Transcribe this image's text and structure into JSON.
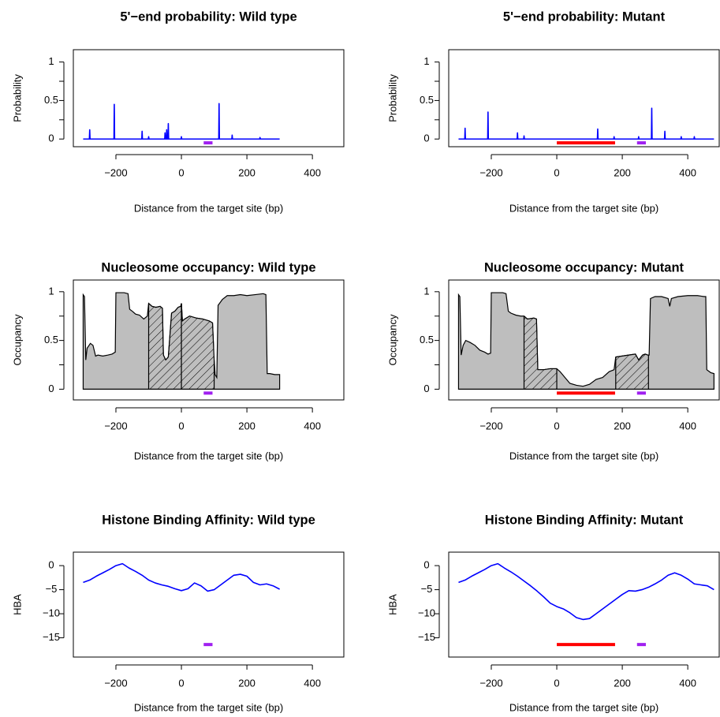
{
  "chart_data": [
    {
      "type": "line",
      "title": "5'−end probability: Wild type",
      "xlabel": "Distance from the target site (bp)",
      "ylabel": "Probability",
      "color": "#0000ff",
      "x": [
        -300,
        -281,
        -280,
        -279,
        -206,
        -205,
        -204,
        -121,
        -120,
        -119,
        -101,
        -100,
        -99,
        -51,
        -50,
        -49,
        -46,
        -45,
        -44,
        -41,
        -40,
        -39,
        -1,
        0,
        1,
        114,
        115,
        116,
        154,
        155,
        156,
        239,
        240,
        241,
        300
      ],
      "values": [
        0,
        0,
        0.12,
        0,
        0,
        0.45,
        0,
        0,
        0.1,
        0,
        0,
        0.03,
        0,
        0,
        0.08,
        0,
        0,
        0.12,
        0,
        0,
        0.2,
        0,
        0,
        0.03,
        0,
        0,
        0.46,
        0,
        0,
        0.05,
        0,
        0,
        0.02,
        0,
        0
      ],
      "xlim": [
        -330,
        496
      ],
      "ylim": [
        -0.1,
        1.16
      ],
      "xticks": [
        {
          "value": -200,
          "label": "−200"
        },
        0,
        200,
        400
      ],
      "yticks": [
        0,
        0.5,
        1
      ],
      "yminor_ticks": [
        0.25,
        0.75
      ],
      "regions": [
        {
          "color": "#a020f0",
          "x": [
            68,
            95
          ],
          "y": -0.05
        }
      ]
    },
    {
      "type": "line",
      "title": "5'−end probability: Mutant",
      "xlabel": "Distance from the target site (bp)",
      "ylabel": "Probability",
      "color": "#0000ff",
      "x": [
        -300,
        -281,
        -280,
        -279,
        -211,
        -210,
        -209,
        -121,
        -120,
        -119,
        -101,
        -100,
        -99,
        124,
        125,
        126,
        174,
        175,
        176,
        249,
        250,
        251,
        289,
        290,
        291,
        329,
        330,
        331,
        379,
        380,
        381,
        419,
        420,
        421,
        480
      ],
      "values": [
        0,
        0,
        0.14,
        0,
        0,
        0.35,
        0,
        0,
        0.08,
        0,
        0,
        0.04,
        0,
        0,
        0.13,
        0,
        0,
        0.03,
        0,
        0,
        0.03,
        0,
        0,
        0.4,
        0,
        0,
        0.1,
        0,
        0,
        0.03,
        0,
        0,
        0.03,
        0,
        0
      ],
      "xlim": [
        -330,
        496
      ],
      "ylim": [
        -0.1,
        1.16
      ],
      "xticks": [
        {
          "value": -200,
          "label": "−200"
        },
        0,
        200,
        400
      ],
      "yticks": [
        0,
        0.5,
        1
      ],
      "yminor_ticks": [
        0.25,
        0.75
      ],
      "regions": [
        {
          "color": "#ff0000",
          "x": [
            0,
            178
          ],
          "y": -0.05
        },
        {
          "color": "#a020f0",
          "x": [
            245,
            272
          ],
          "y": -0.05
        }
      ]
    },
    {
      "type": "area",
      "title": "Nucleosome occupancy: Wild type",
      "xlabel": "Distance from the target site (bp)",
      "ylabel": "Occupancy",
      "color": "#bebebe",
      "x": [
        -300,
        -296,
        -292,
        -288,
        -284,
        -278,
        -270,
        -262,
        -255,
        -240,
        -225,
        -212,
        -202,
        -200,
        -190,
        -175,
        -163,
        -158,
        -150,
        -140,
        -128,
        -115,
        -104,
        -100,
        -90,
        -78,
        -65,
        -58,
        -55,
        -48,
        -40,
        -30,
        -20,
        -10,
        -2,
        0,
        3,
        10,
        25,
        45,
        65,
        85,
        95,
        100,
        103,
        108,
        112,
        125,
        140,
        160,
        180,
        200,
        225,
        250,
        258,
        262,
        270,
        285,
        300
      ],
      "values": [
        0.97,
        0.95,
        0.3,
        0.42,
        0.44,
        0.47,
        0.45,
        0.34,
        0.35,
        0.34,
        0.35,
        0.36,
        0.38,
        0.99,
        0.99,
        0.99,
        0.98,
        0.82,
        0.8,
        0.77,
        0.76,
        0.72,
        0.75,
        0.88,
        0.85,
        0.84,
        0.85,
        0.83,
        0.35,
        0.3,
        0.33,
        0.78,
        0.8,
        0.84,
        0.85,
        0.88,
        0.7,
        0.72,
        0.75,
        0.73,
        0.72,
        0.7,
        0.68,
        0.3,
        0.15,
        0.12,
        0.86,
        0.92,
        0.96,
        0.96,
        0.97,
        0.96,
        0.97,
        0.98,
        0.97,
        0.16,
        0.16,
        0.15,
        0.15
      ],
      "hatched": [
        [
          -100,
          0
        ],
        [
          0,
          100
        ]
      ],
      "xlim": [
        -330,
        496
      ],
      "ylim": [
        -0.11,
        1.12
      ],
      "xticks": [
        {
          "value": -200,
          "label": "−200"
        },
        0,
        200,
        400
      ],
      "yticks": [
        0,
        0.5,
        1
      ],
      "yminor_ticks": [
        0.25,
        0.75
      ],
      "regions": [
        {
          "color": "#a020f0",
          "x": [
            68,
            95
          ],
          "y": -0.04
        }
      ]
    },
    {
      "type": "area",
      "title": "Nucleosome occupancy: Mutant",
      "xlabel": "Distance from the target site (bp)",
      "ylabel": "Occupancy",
      "color": "#bebebe",
      "x": [
        -300,
        -296,
        -292,
        -286,
        -278,
        -265,
        -250,
        -235,
        -220,
        -210,
        -202,
        -200,
        -185,
        -165,
        -155,
        -148,
        -140,
        -125,
        -110,
        -100,
        -90,
        -70,
        -62,
        -58,
        -40,
        -20,
        0,
        10,
        25,
        40,
        60,
        80,
        100,
        120,
        140,
        160,
        175,
        180,
        200,
        220,
        240,
        250,
        262,
        270,
        278,
        282,
        286,
        300,
        320,
        340,
        345,
        350,
        370,
        400,
        430,
        450,
        455,
        458,
        470,
        480
      ],
      "values": [
        0.97,
        0.95,
        0.35,
        0.45,
        0.5,
        0.48,
        0.45,
        0.4,
        0.38,
        0.36,
        0.37,
        0.99,
        0.99,
        0.99,
        0.98,
        0.8,
        0.78,
        0.76,
        0.75,
        0.75,
        0.72,
        0.73,
        0.72,
        0.2,
        0.2,
        0.21,
        0.21,
        0.18,
        0.12,
        0.06,
        0.04,
        0.03,
        0.05,
        0.1,
        0.12,
        0.18,
        0.2,
        0.33,
        0.34,
        0.35,
        0.36,
        0.3,
        0.35,
        0.36,
        0.35,
        0.35,
        0.93,
        0.95,
        0.95,
        0.93,
        0.85,
        0.93,
        0.95,
        0.96,
        0.96,
        0.95,
        0.95,
        0.2,
        0.17,
        0.16
      ],
      "hatched": [
        [
          -100,
          0
        ],
        [
          180,
          280
        ]
      ],
      "xlim": [
        -330,
        496
      ],
      "ylim": [
        -0.11,
        1.12
      ],
      "xticks": [
        {
          "value": -200,
          "label": "−200"
        },
        0,
        200,
        400
      ],
      "yticks": [
        0,
        0.5,
        1
      ],
      "yminor_ticks": [
        0.25,
        0.75
      ],
      "regions": [
        {
          "color": "#ff0000",
          "x": [
            0,
            178
          ],
          "y": -0.04
        },
        {
          "color": "#a020f0",
          "x": [
            245,
            272
          ],
          "y": -0.04
        }
      ]
    },
    {
      "type": "line",
      "title": "Histone Binding Affinity: Wild type",
      "xlabel": "Distance from the target site (bp)",
      "ylabel": "HBA",
      "color": "#0000ff",
      "x": [
        -300,
        -280,
        -260,
        -240,
        -220,
        -200,
        -180,
        -160,
        -140,
        -120,
        -100,
        -80,
        -60,
        -40,
        -20,
        0,
        20,
        40,
        60,
        80,
        100,
        120,
        140,
        160,
        180,
        200,
        220,
        240,
        260,
        280,
        300
      ],
      "values": [
        -3.5,
        -3,
        -2.2,
        -1.5,
        -0.8,
        0,
        0.4,
        -0.5,
        -1.2,
        -2,
        -3,
        -3.6,
        -4,
        -4.3,
        -4.8,
        -5.2,
        -4.8,
        -3.6,
        -4.2,
        -5.3,
        -5,
        -4,
        -3,
        -2,
        -1.8,
        -2.2,
        -3.5,
        -4,
        -3.8,
        -4.2,
        -4.9
      ],
      "xlim": [
        -330,
        496
      ],
      "ylim": [
        -19,
        2.8
      ],
      "xticks": [
        {
          "value": -200,
          "label": "−200"
        },
        0,
        200,
        400
      ],
      "yticks": [
        0,
        {
          "value": -5,
          "label": "−5"
        },
        {
          "value": -10,
          "label": "−10"
        },
        {
          "value": -15,
          "label": "−15"
        }
      ],
      "regions": [
        {
          "color": "#a020f0",
          "x": [
            68,
            95
          ],
          "y": -16.4
        }
      ]
    },
    {
      "type": "line",
      "title": "Histone Binding Affinity: Mutant",
      "xlabel": "Distance from the target site (bp)",
      "ylabel": "HBA",
      "color": "#0000ff",
      "x": [
        -300,
        -280,
        -260,
        -240,
        -220,
        -200,
        -180,
        -160,
        -140,
        -120,
        -100,
        -80,
        -60,
        -40,
        -20,
        0,
        20,
        40,
        60,
        80,
        100,
        120,
        140,
        160,
        180,
        200,
        220,
        240,
        260,
        280,
        300,
        320,
        340,
        360,
        380,
        400,
        420,
        440,
        460,
        480
      ],
      "values": [
        -3.5,
        -3,
        -2.2,
        -1.5,
        -0.8,
        0,
        0.4,
        -0.5,
        -1.3,
        -2.2,
        -3.2,
        -4.2,
        -5.3,
        -6.5,
        -7.8,
        -8.5,
        -9,
        -9.8,
        -10.8,
        -11.2,
        -11,
        -10,
        -9,
        -8,
        -7,
        -6,
        -5.2,
        -5.3,
        -5,
        -4.5,
        -3.8,
        -3,
        -2,
        -1.5,
        -2,
        -2.8,
        -3.8,
        -4,
        -4.2,
        -5
      ],
      "xlim": [
        -330,
        496
      ],
      "ylim": [
        -19,
        2.8
      ],
      "xticks": [
        {
          "value": -200,
          "label": "−200"
        },
        0,
        200,
        400
      ],
      "yticks": [
        0,
        {
          "value": -5,
          "label": "−5"
        },
        {
          "value": -10,
          "label": "−10"
        },
        {
          "value": -15,
          "label": "−15"
        }
      ],
      "regions": [
        {
          "color": "#ff0000",
          "x": [
            0,
            178
          ],
          "y": -16.4
        },
        {
          "color": "#a020f0",
          "x": [
            245,
            272
          ],
          "y": -16.4
        }
      ]
    }
  ]
}
